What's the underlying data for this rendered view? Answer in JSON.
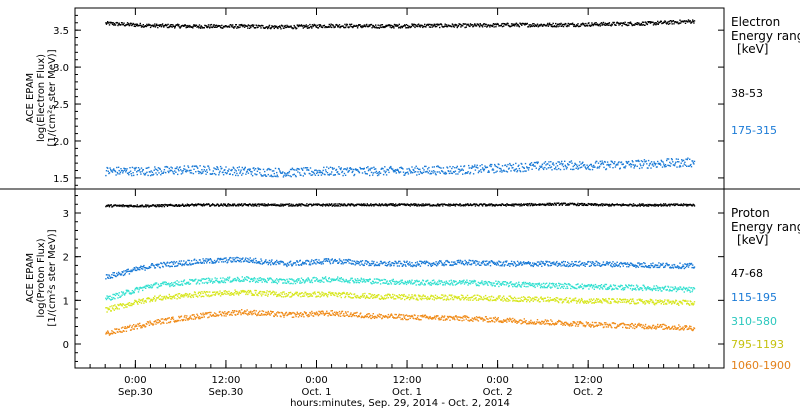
{
  "chart_data": [
    {
      "type": "scatter",
      "panel": "electron",
      "ylabel_lines": [
        "ACE EPAM",
        "log(Electron Flux)",
        "[1/(cm²s ster MeV)]"
      ],
      "ylim": [
        1.35,
        3.8
      ],
      "yticks": [
        1.5,
        2.0,
        2.5,
        3.0,
        3.5
      ],
      "ytick_labels": [
        "1.5",
        "2.0",
        "2.5",
        "3.0",
        "3.5"
      ],
      "legend_title_lines": [
        "Electron",
        "Energy ranges",
        "[keV]"
      ],
      "series": [
        {
          "name": "38-53",
          "color": "#000000",
          "x": [
            0,
            6,
            12,
            18,
            24,
            30,
            36,
            42,
            48,
            54,
            60,
            66,
            72,
            78
          ],
          "y": [
            3.6,
            3.57,
            3.56,
            3.56,
            3.55,
            3.57,
            3.56,
            3.57,
            3.57,
            3.58,
            3.58,
            3.59,
            3.6,
            3.63
          ]
        },
        {
          "name": "175-315",
          "color": "#1a7ad6",
          "x": [
            0,
            6,
            12,
            18,
            24,
            30,
            36,
            42,
            48,
            54,
            60,
            66,
            72,
            78
          ],
          "y": [
            1.6,
            1.6,
            1.62,
            1.6,
            1.58,
            1.6,
            1.6,
            1.61,
            1.62,
            1.65,
            1.68,
            1.68,
            1.7,
            1.72
          ]
        }
      ]
    },
    {
      "type": "scatter",
      "panel": "proton",
      "ylabel_lines": [
        "ACE EPAM",
        "log(Proton Flux)",
        "[1/(cm²s ster MeV)]"
      ],
      "ylim": [
        -0.55,
        3.55
      ],
      "yticks": [
        0,
        1,
        2,
        3
      ],
      "ytick_labels": [
        "0",
        "1",
        "2",
        "3"
      ],
      "legend_title_lines": [
        "Proton",
        "Energy ranges",
        "[keV]"
      ],
      "series": [
        {
          "name": "47-68",
          "color": "#000000",
          "x": [
            0,
            6,
            12,
            18,
            24,
            30,
            36,
            42,
            48,
            54,
            60,
            66,
            72,
            78
          ],
          "y": [
            3.18,
            3.18,
            3.2,
            3.2,
            3.2,
            3.2,
            3.2,
            3.2,
            3.2,
            3.2,
            3.22,
            3.2,
            3.2,
            3.2
          ]
        },
        {
          "name": "115-195",
          "color": "#1a7ad6",
          "x": [
            0,
            6,
            12,
            18,
            24,
            30,
            36,
            42,
            48,
            54,
            60,
            66,
            72,
            78
          ],
          "y": [
            1.55,
            1.8,
            1.9,
            1.95,
            1.85,
            1.92,
            1.85,
            1.85,
            1.88,
            1.85,
            1.85,
            1.85,
            1.82,
            1.8
          ]
        },
        {
          "name": "310-580",
          "color": "#33e0d0",
          "x": [
            0,
            6,
            12,
            18,
            24,
            30,
            36,
            42,
            48,
            54,
            60,
            66,
            72,
            78
          ],
          "y": [
            1.05,
            1.35,
            1.45,
            1.5,
            1.45,
            1.5,
            1.45,
            1.42,
            1.42,
            1.38,
            1.35,
            1.32,
            1.3,
            1.25
          ]
        },
        {
          "name": "795-1193",
          "color": "#d7e61e",
          "x": [
            0,
            6,
            12,
            18,
            24,
            30,
            36,
            42,
            48,
            54,
            60,
            66,
            72,
            78
          ],
          "y": [
            0.8,
            1.05,
            1.15,
            1.2,
            1.15,
            1.15,
            1.1,
            1.08,
            1.08,
            1.05,
            1.02,
            1.0,
            0.98,
            0.95
          ]
        },
        {
          "name": "1060-1900",
          "color": "#f08c1a",
          "x": [
            0,
            6,
            12,
            18,
            24,
            30,
            36,
            42,
            48,
            54,
            60,
            66,
            72,
            78
          ],
          "y": [
            0.25,
            0.5,
            0.65,
            0.75,
            0.68,
            0.72,
            0.65,
            0.62,
            0.6,
            0.55,
            0.5,
            0.45,
            0.42,
            0.38
          ]
        }
      ]
    }
  ],
  "x_axis": {
    "ticks": [
      {
        "x": 4,
        "time": "0:00",
        "date": "Sep.30"
      },
      {
        "x": 16,
        "time": "12:00",
        "date": "Sep.30"
      },
      {
        "x": 28,
        "time": "0:00",
        "date": "Oct. 1"
      },
      {
        "x": 40,
        "time": "12:00",
        "date": "Oct. 1"
      },
      {
        "x": 52,
        "time": "0:00",
        "date": "Oct. 2"
      },
      {
        "x": 64,
        "time": "12:00",
        "date": "Oct. 2"
      }
    ],
    "xlabel": "hours:minutes, Sep. 29, 2014 - Oct.  2, 2014"
  }
}
